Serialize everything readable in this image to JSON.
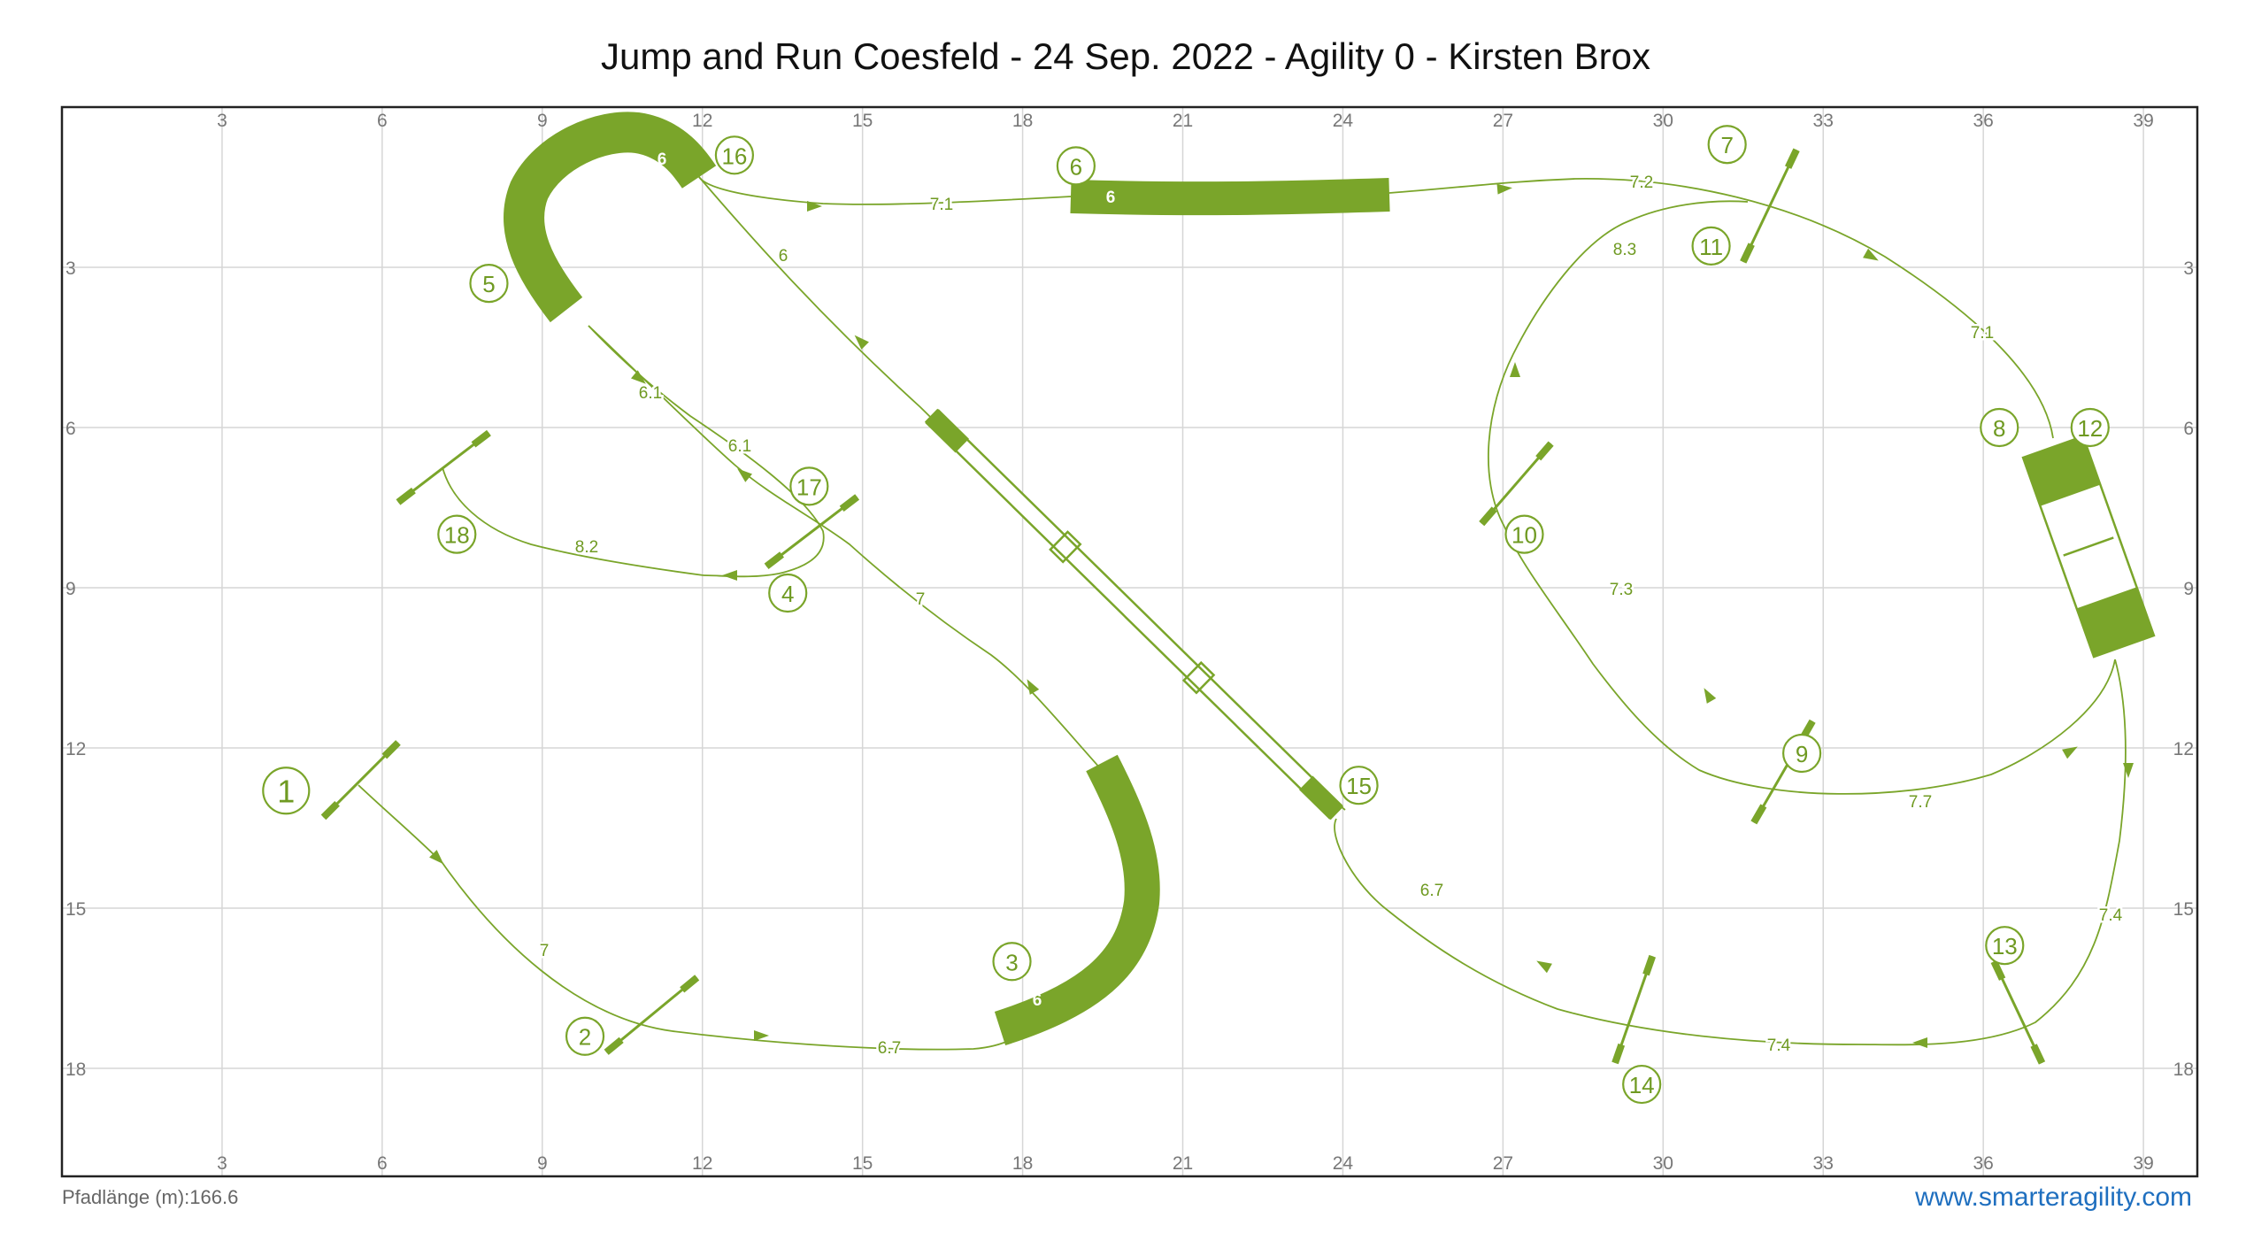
{
  "title": "Jump and Run Coesfeld - 24 Sep. 2022 - Agility 0 - Kirsten Brox",
  "footer": {
    "label": "Pfadlänge (m):",
    "value": "166.6",
    "link": "www.smarteragility.com"
  },
  "axes": {
    "x_ticks": [
      "3",
      "6",
      "9",
      "12",
      "15",
      "18",
      "21",
      "24",
      "27",
      "30",
      "33",
      "36",
      "39"
    ],
    "y_ticks": [
      "3",
      "6",
      "9",
      "12",
      "15",
      "18"
    ]
  },
  "colors": {
    "obstacle": "#7aa52a",
    "grid": "#d6d6d6",
    "link": "#1f6fbf"
  },
  "course": {
    "jumps": [
      {
        "id": "jump-1",
        "x1": 4.9,
        "y1": 13.3,
        "x2": 6.3,
        "y2": 11.9
      },
      {
        "id": "jump-2",
        "x1": 10.2,
        "y1": 17.7,
        "x2": 11.9,
        "y2": 16.3
      },
      {
        "id": "jump-4",
        "x1": 13.2,
        "y1": 8.6,
        "x2": 14.9,
        "y2": 7.3
      },
      {
        "id": "jump-7",
        "x1": 31.5,
        "y1": 2.9,
        "x2": 32.5,
        "y2": 0.8
      },
      {
        "id": "jump-9",
        "x1": 31.7,
        "y1": 13.4,
        "x2": 32.8,
        "y2": 11.5
      },
      {
        "id": "jump-10",
        "x1": 26.6,
        "y1": 7.8,
        "x2": 27.9,
        "y2": 6.3
      },
      {
        "id": "jump-13",
        "x1": 36.2,
        "y1": 16.0,
        "x2": 37.1,
        "y2": 17.9
      },
      {
        "id": "jump-14",
        "x1": 29.1,
        "y1": 17.9,
        "x2": 29.8,
        "y2": 15.9
      },
      {
        "id": "jump-18",
        "x1": 6.3,
        "y1": 7.4,
        "x2": 8.0,
        "y2": 6.1
      }
    ],
    "numbers": [
      {
        "n": "1",
        "x": 4.2,
        "y": 12.8,
        "big": true
      },
      {
        "n": "2",
        "x": 9.8,
        "y": 17.4
      },
      {
        "n": "3",
        "x": 17.8,
        "y": 16.0
      },
      {
        "n": "4",
        "x": 13.6,
        "y": 9.1
      },
      {
        "n": "5",
        "x": 8.0,
        "y": 3.3
      },
      {
        "n": "6",
        "x": 19.0,
        "y": 1.1
      },
      {
        "n": "7",
        "x": 31.2,
        "y": 0.7
      },
      {
        "n": "8",
        "x": 36.3,
        "y": 6.0
      },
      {
        "n": "9",
        "x": 32.6,
        "y": 12.1
      },
      {
        "n": "10",
        "x": 27.4,
        "y": 8.0
      },
      {
        "n": "11",
        "x": 30.9,
        "y": 2.6
      },
      {
        "n": "12",
        "x": 38.0,
        "y": 6.0
      },
      {
        "n": "13",
        "x": 36.4,
        "y": 15.7
      },
      {
        "n": "14",
        "x": 29.6,
        "y": 18.3
      },
      {
        "n": "15",
        "x": 24.3,
        "y": 12.7
      },
      {
        "n": "16",
        "x": 12.6,
        "y": 0.9
      },
      {
        "n": "17",
        "x": 14.0,
        "y": 7.1
      },
      {
        "n": "18",
        "x": 7.4,
        "y": 8.0
      }
    ],
    "tunnels": [
      {
        "id": "tunnel-3",
        "label": "6"
      },
      {
        "id": "tunnel-5",
        "label": "6"
      },
      {
        "id": "tunnel-6",
        "label": "6"
      }
    ],
    "segment_labels": [
      "7",
      "6.7",
      "7",
      "6.1",
      "6.1",
      "6",
      "7.1",
      "7.2",
      "7.1",
      "7.7",
      "7.3",
      "8.3",
      "7.4",
      "7.4",
      "6.7",
      "8.2"
    ]
  }
}
